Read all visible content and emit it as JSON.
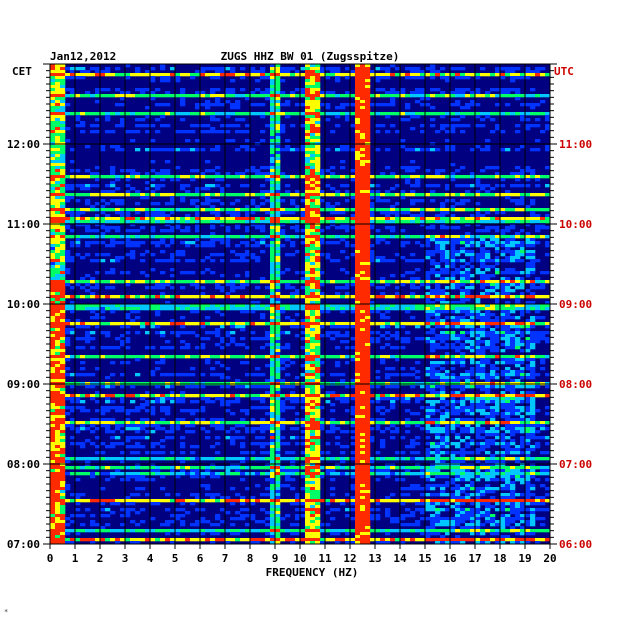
{
  "chart_data": {
    "type": "heatmap",
    "title_left": "Jan12,2012",
    "title_center": "ZUGS HHZ BW 01 (Zugsspitze)",
    "xlabel": "FREQUENCY (HZ)",
    "xlim": [
      0,
      20
    ],
    "x_ticks": [
      "0",
      "1",
      "2",
      "3",
      "4",
      "5",
      "6",
      "7",
      "8",
      "9",
      "10",
      "11",
      "12",
      "13",
      "14",
      "15",
      "16",
      "17",
      "18",
      "19",
      "20"
    ],
    "left_axis_label": "CET",
    "right_axis_label": "UTC",
    "left_time_ticks": [
      "12:00",
      "11:00",
      "10:00",
      "09:00",
      "08:00",
      "07:00"
    ],
    "right_time_ticks": [
      "11:00",
      "10:00",
      "09:00",
      "08:00",
      "07:00",
      "06:00"
    ],
    "time_range_cet": [
      "07:00",
      "13:00"
    ],
    "grid": true,
    "colormap": [
      "#00008b",
      "#0033ff",
      "#00c8ff",
      "#00ff66",
      "#ffff00",
      "#ff2a00"
    ],
    "spectral_lines_hz": [
      9.0,
      10.6,
      12.6
    ],
    "colors": {
      "axis": "#000000",
      "utc_labels": "#cc0000",
      "background": "#000080"
    }
  },
  "footer_mark": "*"
}
